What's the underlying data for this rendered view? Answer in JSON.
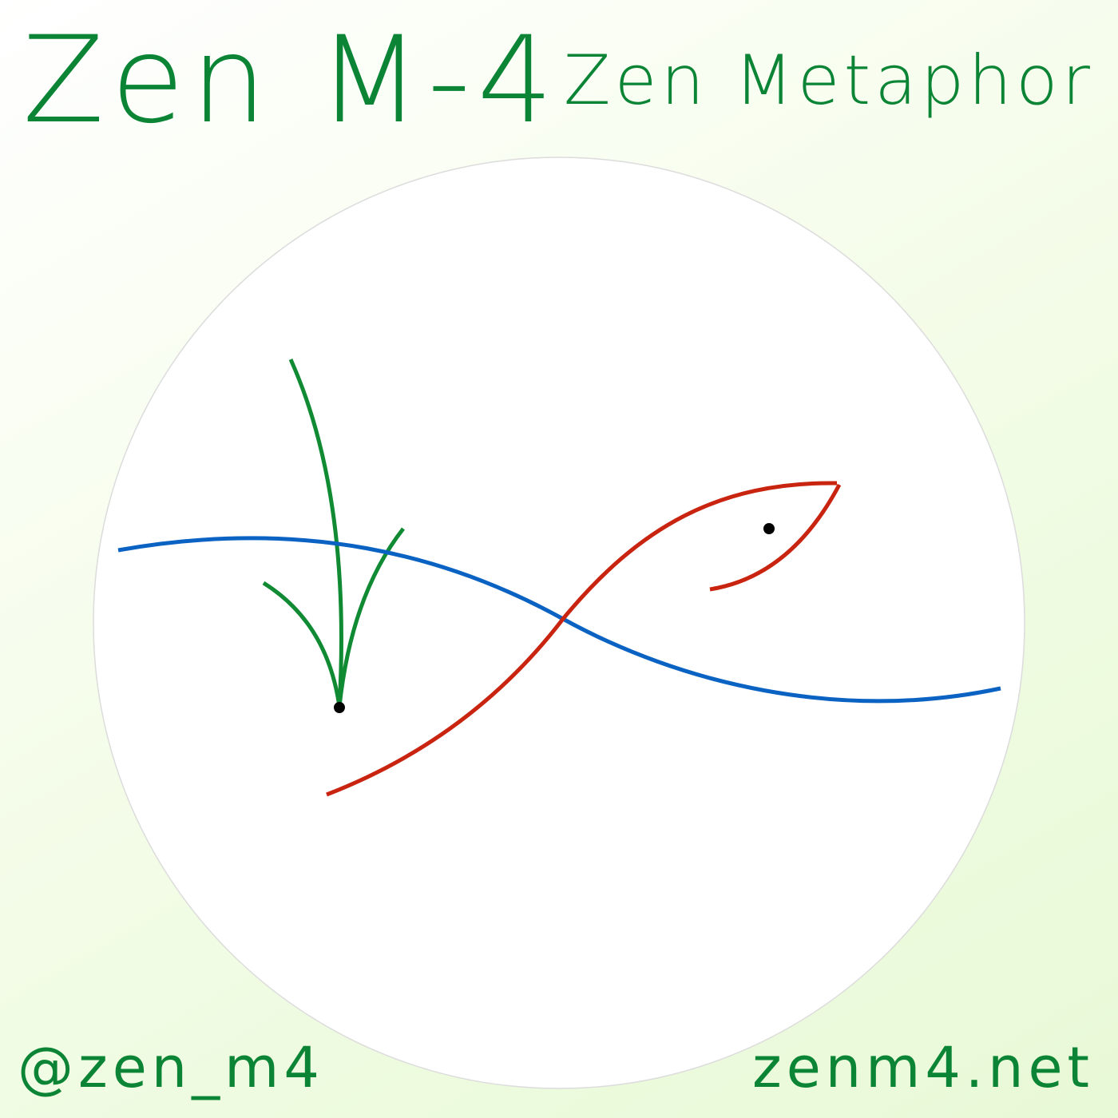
{
  "header": {
    "title": "Zen M-4",
    "subtitle": "Zen Metaphor"
  },
  "footer": {
    "handle": "@zen_m4",
    "website": "zenm4.net"
  },
  "colors": {
    "brand_green": "#0b8535",
    "plant_green": "#108a33",
    "water_blue": "#0a62c2",
    "fish_red": "#c82410",
    "dot_black": "#000000",
    "circle_fill": "#ffffff",
    "circle_border": "#dcdcdc"
  },
  "artwork": {
    "elements": [
      "reed-plant",
      "water-line",
      "fish"
    ]
  }
}
